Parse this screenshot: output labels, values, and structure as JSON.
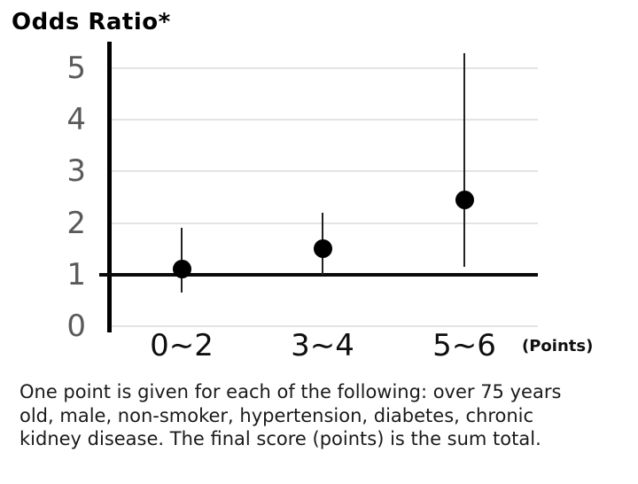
{
  "title": "Odds Ratio*",
  "footnote": "One point is given for each of the following: over 75 years\nold, male, non-smoker, hypertension, diabetes, chronic\nkidney disease. The final score (points) is the sum total.",
  "colors": {
    "axis": "#000000",
    "reference_line": "#0a0a0a",
    "gridline": "#e4e4e4",
    "tick_label": "#5a5a5a",
    "marker": "#000000",
    "error_bar": "#222222",
    "text": "#1a1a1a"
  },
  "chart_data": {
    "type": "scatter",
    "title": "Odds Ratio*",
    "xlabel": "(Points)",
    "ylabel": "Odds Ratio",
    "categories": [
      "0∼2",
      "3∼4",
      "5∼6"
    ],
    "points": [
      {
        "category": "0∼2",
        "odds_ratio": 1.1,
        "ci_low": 0.65,
        "ci_high": 1.9
      },
      {
        "category": "3∼4",
        "odds_ratio": 1.5,
        "ci_low": 1.0,
        "ci_high": 2.2
      },
      {
        "category": "5∼6",
        "odds_ratio": 2.45,
        "ci_low": 1.15,
        "ci_high": 5.3
      }
    ],
    "yticks": [
      0,
      1,
      2,
      3,
      4,
      5
    ],
    "ylim": [
      0,
      5.6
    ],
    "reference_line_y": 1,
    "grid": true,
    "legend": false,
    "marker_style": "filled-circle",
    "error_bars": "95% CI vertical lines"
  }
}
